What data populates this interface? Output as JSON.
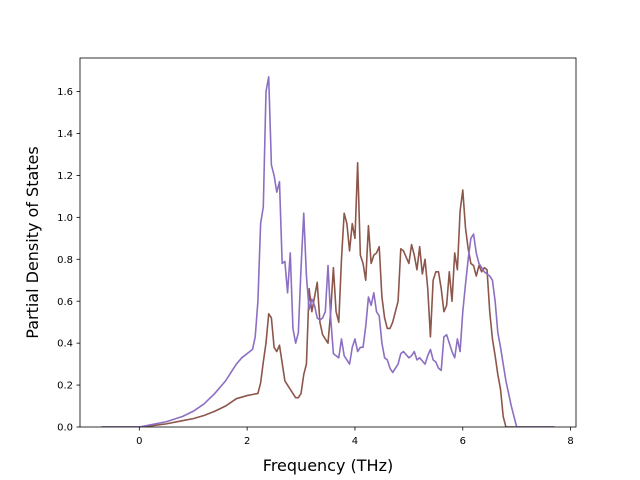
{
  "chart_data": {
    "type": "line",
    "title": "",
    "xlabel": "Frequency (THz)",
    "ylabel": "Partial Density of States",
    "xlim": [
      -1.1,
      8.1
    ],
    "ylim": [
      0.0,
      1.76
    ],
    "xticks": [
      0,
      2,
      4,
      6,
      8
    ],
    "yticks": [
      0.0,
      0.2,
      0.4,
      0.6,
      0.8,
      1.0,
      1.2,
      1.4,
      1.6
    ],
    "grid": false,
    "legend": "none",
    "series": [
      {
        "color": "#8c564b",
        "x": [
          -0.7,
          0.0,
          0.2,
          0.5,
          0.8,
          1.0,
          1.2,
          1.4,
          1.6,
          1.8,
          2.0,
          2.1,
          2.2,
          2.25,
          2.3,
          2.35,
          2.4,
          2.45,
          2.5,
          2.55,
          2.6,
          2.7,
          2.8,
          2.9,
          2.95,
          3.0,
          3.05,
          3.1,
          3.15,
          3.2,
          3.3,
          3.35,
          3.4,
          3.45,
          3.5,
          3.55,
          3.6,
          3.65,
          3.7,
          3.75,
          3.8,
          3.85,
          3.9,
          3.95,
          4.0,
          4.05,
          4.1,
          4.15,
          4.2,
          4.25,
          4.3,
          4.35,
          4.4,
          4.45,
          4.5,
          4.55,
          4.6,
          4.65,
          4.7,
          4.75,
          4.8,
          4.85,
          4.9,
          5.0,
          5.05,
          5.1,
          5.15,
          5.2,
          5.25,
          5.3,
          5.35,
          5.4,
          5.45,
          5.5,
          5.55,
          5.6,
          5.65,
          5.7,
          5.75,
          5.8,
          5.85,
          5.9,
          5.95,
          6.0,
          6.05,
          6.1,
          6.15,
          6.2,
          6.25,
          6.3,
          6.35,
          6.4,
          6.45,
          6.5,
          6.55,
          6.6,
          6.65,
          6.7,
          6.75,
          6.8,
          6.85,
          6.9,
          6.95,
          7.0,
          7.7
        ],
        "values": [
          0.0,
          0.0,
          0.005,
          0.015,
          0.03,
          0.04,
          0.055,
          0.075,
          0.1,
          0.135,
          0.15,
          0.155,
          0.16,
          0.21,
          0.31,
          0.4,
          0.54,
          0.52,
          0.38,
          0.36,
          0.39,
          0.22,
          0.18,
          0.14,
          0.14,
          0.16,
          0.25,
          0.3,
          0.66,
          0.55,
          0.69,
          0.5,
          0.44,
          0.42,
          0.4,
          0.55,
          0.76,
          0.55,
          0.5,
          0.8,
          1.02,
          0.97,
          0.84,
          0.97,
          0.9,
          1.26,
          0.82,
          0.78,
          0.7,
          0.96,
          0.78,
          0.82,
          0.83,
          0.86,
          0.62,
          0.52,
          0.47,
          0.47,
          0.5,
          0.55,
          0.6,
          0.85,
          0.84,
          0.78,
          0.87,
          0.82,
          0.75,
          0.86,
          0.73,
          0.8,
          0.66,
          0.43,
          0.7,
          0.74,
          0.74,
          0.66,
          0.55,
          0.58,
          0.74,
          0.6,
          0.83,
          0.75,
          1.03,
          1.13,
          0.95,
          0.85,
          0.78,
          0.77,
          0.72,
          0.77,
          0.74,
          0.76,
          0.75,
          0.55,
          0.42,
          0.34,
          0.25,
          0.18,
          0.05,
          0.0,
          0.0,
          0.0,
          0.0,
          0.0,
          0.0
        ]
      },
      {
        "color": "#8c6fc2",
        "x": [
          -0.7,
          0.0,
          0.2,
          0.5,
          0.8,
          1.0,
          1.2,
          1.4,
          1.6,
          1.7,
          1.8,
          1.9,
          2.0,
          2.05,
          2.1,
          2.15,
          2.2,
          2.25,
          2.3,
          2.35,
          2.4,
          2.45,
          2.5,
          2.55,
          2.6,
          2.65,
          2.7,
          2.75,
          2.8,
          2.85,
          2.9,
          2.95,
          3.0,
          3.05,
          3.1,
          3.15,
          3.2,
          3.25,
          3.3,
          3.35,
          3.4,
          3.45,
          3.5,
          3.55,
          3.6,
          3.65,
          3.7,
          3.75,
          3.8,
          3.85,
          3.9,
          3.95,
          4.0,
          4.05,
          4.1,
          4.15,
          4.2,
          4.25,
          4.3,
          4.35,
          4.4,
          4.45,
          4.5,
          4.55,
          4.6,
          4.65,
          4.7,
          4.8,
          4.85,
          4.9,
          5.0,
          5.05,
          5.1,
          5.15,
          5.2,
          5.3,
          5.35,
          5.4,
          5.45,
          5.5,
          5.55,
          5.6,
          5.65,
          5.7,
          5.75,
          5.8,
          5.85,
          5.9,
          5.95,
          6.0,
          6.05,
          6.1,
          6.15,
          6.2,
          6.25,
          6.3,
          6.35,
          6.4,
          6.45,
          6.5,
          6.55,
          6.6,
          6.65,
          6.7,
          6.75,
          6.8,
          6.85,
          6.9,
          6.95,
          7.0,
          7.7
        ],
        "values": [
          0.0,
          0.0,
          0.01,
          0.025,
          0.05,
          0.075,
          0.11,
          0.16,
          0.22,
          0.26,
          0.3,
          0.33,
          0.35,
          0.36,
          0.37,
          0.43,
          0.6,
          0.97,
          1.05,
          1.6,
          1.67,
          1.25,
          1.2,
          1.12,
          1.17,
          0.78,
          0.79,
          0.64,
          0.83,
          0.47,
          0.4,
          0.45,
          0.76,
          1.02,
          0.72,
          0.56,
          0.61,
          0.58,
          0.52,
          0.51,
          0.52,
          0.55,
          0.77,
          0.52,
          0.35,
          0.34,
          0.33,
          0.42,
          0.34,
          0.32,
          0.3,
          0.38,
          0.42,
          0.36,
          0.38,
          0.38,
          0.48,
          0.62,
          0.58,
          0.64,
          0.55,
          0.53,
          0.4,
          0.33,
          0.32,
          0.28,
          0.26,
          0.3,
          0.35,
          0.36,
          0.33,
          0.34,
          0.36,
          0.32,
          0.33,
          0.3,
          0.34,
          0.37,
          0.32,
          0.31,
          0.28,
          0.27,
          0.43,
          0.44,
          0.4,
          0.36,
          0.33,
          0.42,
          0.36,
          0.55,
          0.68,
          0.8,
          0.9,
          0.92,
          0.83,
          0.78,
          0.76,
          0.74,
          0.73,
          0.72,
          0.7,
          0.6,
          0.45,
          0.38,
          0.3,
          0.22,
          0.16,
          0.1,
          0.05,
          0.0,
          0.0
        ]
      }
    ]
  }
}
